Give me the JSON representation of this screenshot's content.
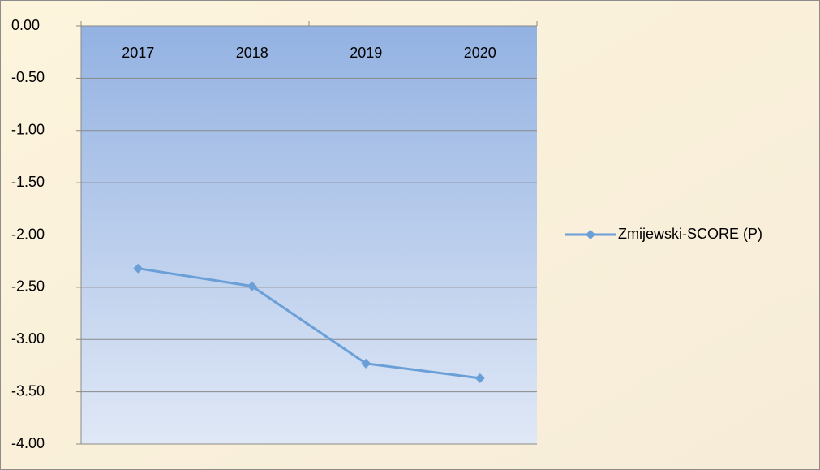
{
  "chart_data": {
    "type": "line",
    "categories": [
      "2017",
      "2018",
      "2019",
      "2020"
    ],
    "series": [
      {
        "name": "Zmijewski-SCORE (P)",
        "color": "#6a9fd8",
        "values": [
          -2.32,
          -2.49,
          -3.23,
          -3.37
        ]
      }
    ],
    "ylim": [
      -4,
      0
    ],
    "yticks": [
      {
        "value": 0,
        "label": "0.00"
      },
      {
        "value": -0.5,
        "label": "-0.50"
      },
      {
        "value": -1,
        "label": "-1.00"
      },
      {
        "value": -1.5,
        "label": "-1.50"
      },
      {
        "value": -2,
        "label": "-2.00"
      },
      {
        "value": -2.5,
        "label": "-2.50"
      },
      {
        "value": -3,
        "label": "-3.00"
      },
      {
        "value": -3.5,
        "label": "-3.50"
      },
      {
        "value": -4,
        "label": "-4.00"
      }
    ],
    "grid": true,
    "legend": "right"
  }
}
